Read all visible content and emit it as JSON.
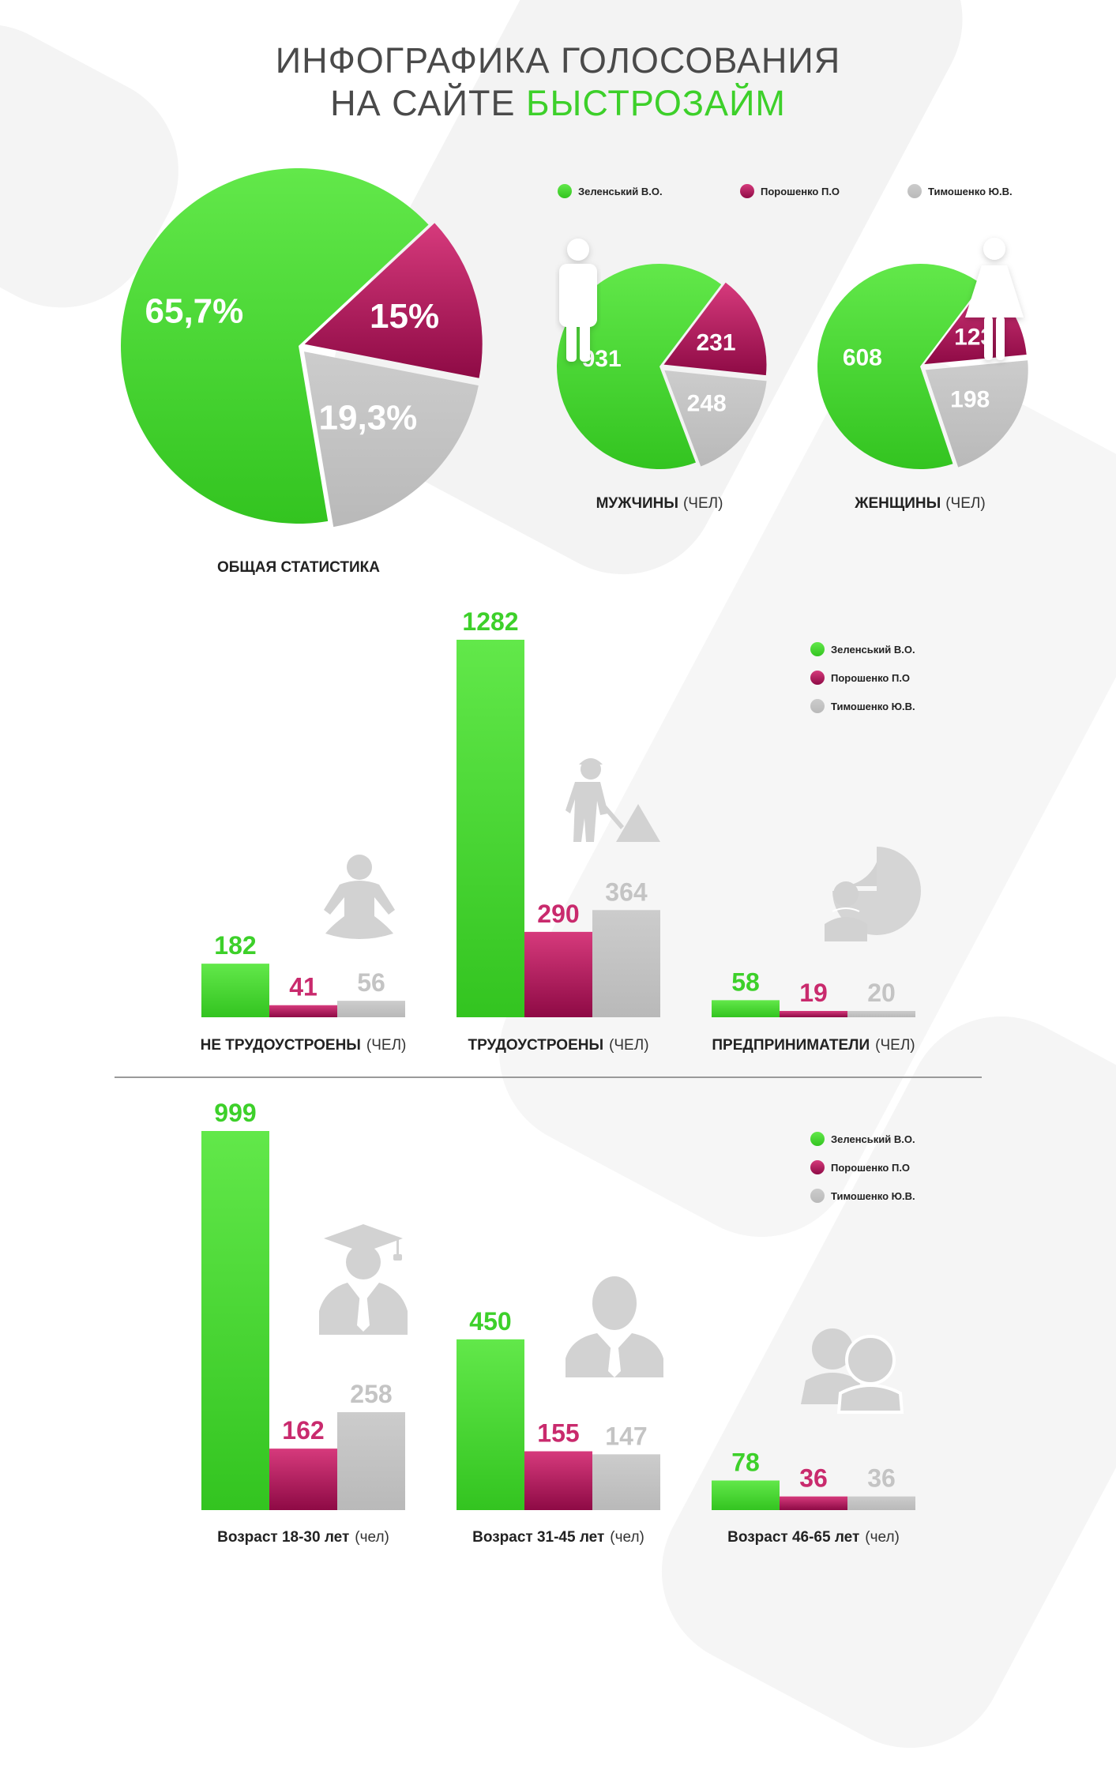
{
  "title": {
    "line1": "ИНФОГРАФИКА ГОЛОСОВАНИЯ",
    "line2_prefix": "НА САЙТЕ ",
    "line2_accent": "БЫСТРОЗАЙМ"
  },
  "colors": {
    "green": "#3dd02a",
    "green_light": "#62e84a",
    "pink": "#c92a6d",
    "pink_dark": "#8e0a45",
    "gray": "#c4c4c4",
    "icon": "#d2d2d2"
  },
  "legend": [
    "Зеленський В.О.",
    "Порошенко П.О",
    "Тимошенко Ю.В."
  ],
  "chart_data": [
    {
      "type": "pie",
      "caption": "ОБЩАЯ СТАТИСТИКА",
      "categories": [
        "Зеленський В.О.",
        "Порошенко П.О",
        "Тимошенко Ю.В."
      ],
      "values": [
        65.7,
        15,
        19.3
      ],
      "labels": [
        "65,7%",
        "15%",
        "19,3%"
      ]
    },
    {
      "type": "pie",
      "caption_bold": "МУЖЧИНЫ",
      "caption_thin": "(ЧЕЛ)",
      "categories": [
        "Зеленський В.О.",
        "Порошенко П.О",
        "Тимошенко Ю.В."
      ],
      "values": [
        931,
        231,
        248
      ],
      "labels": [
        "931",
        "231",
        "248"
      ]
    },
    {
      "type": "pie",
      "caption_bold": "ЖЕНЩИНЫ",
      "caption_thin": "(ЧЕЛ)",
      "categories": [
        "Зеленський В.О.",
        "Порошенко П.О",
        "Тимошенко Ю.В."
      ],
      "values": [
        608,
        123,
        198
      ],
      "labels": [
        "608",
        "123",
        "198"
      ]
    },
    {
      "type": "bar",
      "series_names": [
        "Зеленський В.О.",
        "Порошенко П.О",
        "Тимошенко Ю.В."
      ],
      "groups": [
        {
          "label_bold": "НЕ ТРУДОУСТРОЕНЫ",
          "label_thin": "(ЧЕЛ)",
          "values": [
            182,
            41,
            56
          ]
        },
        {
          "label_bold": "ТРУДОУСТРОЕНЫ",
          "label_thin": "(ЧЕЛ)",
          "values": [
            1282,
            290,
            364
          ]
        },
        {
          "label_bold": "ПРЕДПРИНИМАТЕЛИ",
          "label_thin": "(ЧЕЛ)",
          "values": [
            58,
            19,
            20
          ]
        }
      ]
    },
    {
      "type": "bar",
      "series_names": [
        "Зеленський В.О.",
        "Порошенко П.О",
        "Тимошенко Ю.В."
      ],
      "groups": [
        {
          "label_bold": "Возраст 18-30 лет",
          "label_thin": "(чел)",
          "values": [
            999,
            162,
            258
          ]
        },
        {
          "label_bold": "Возраст 31-45 лет",
          "label_thin": "(чел)",
          "values": [
            450,
            155,
            147
          ]
        },
        {
          "label_bold": "Возраст 46-65 лет",
          "label_thin": "(чел)",
          "values": [
            78,
            36,
            36
          ]
        }
      ]
    }
  ]
}
